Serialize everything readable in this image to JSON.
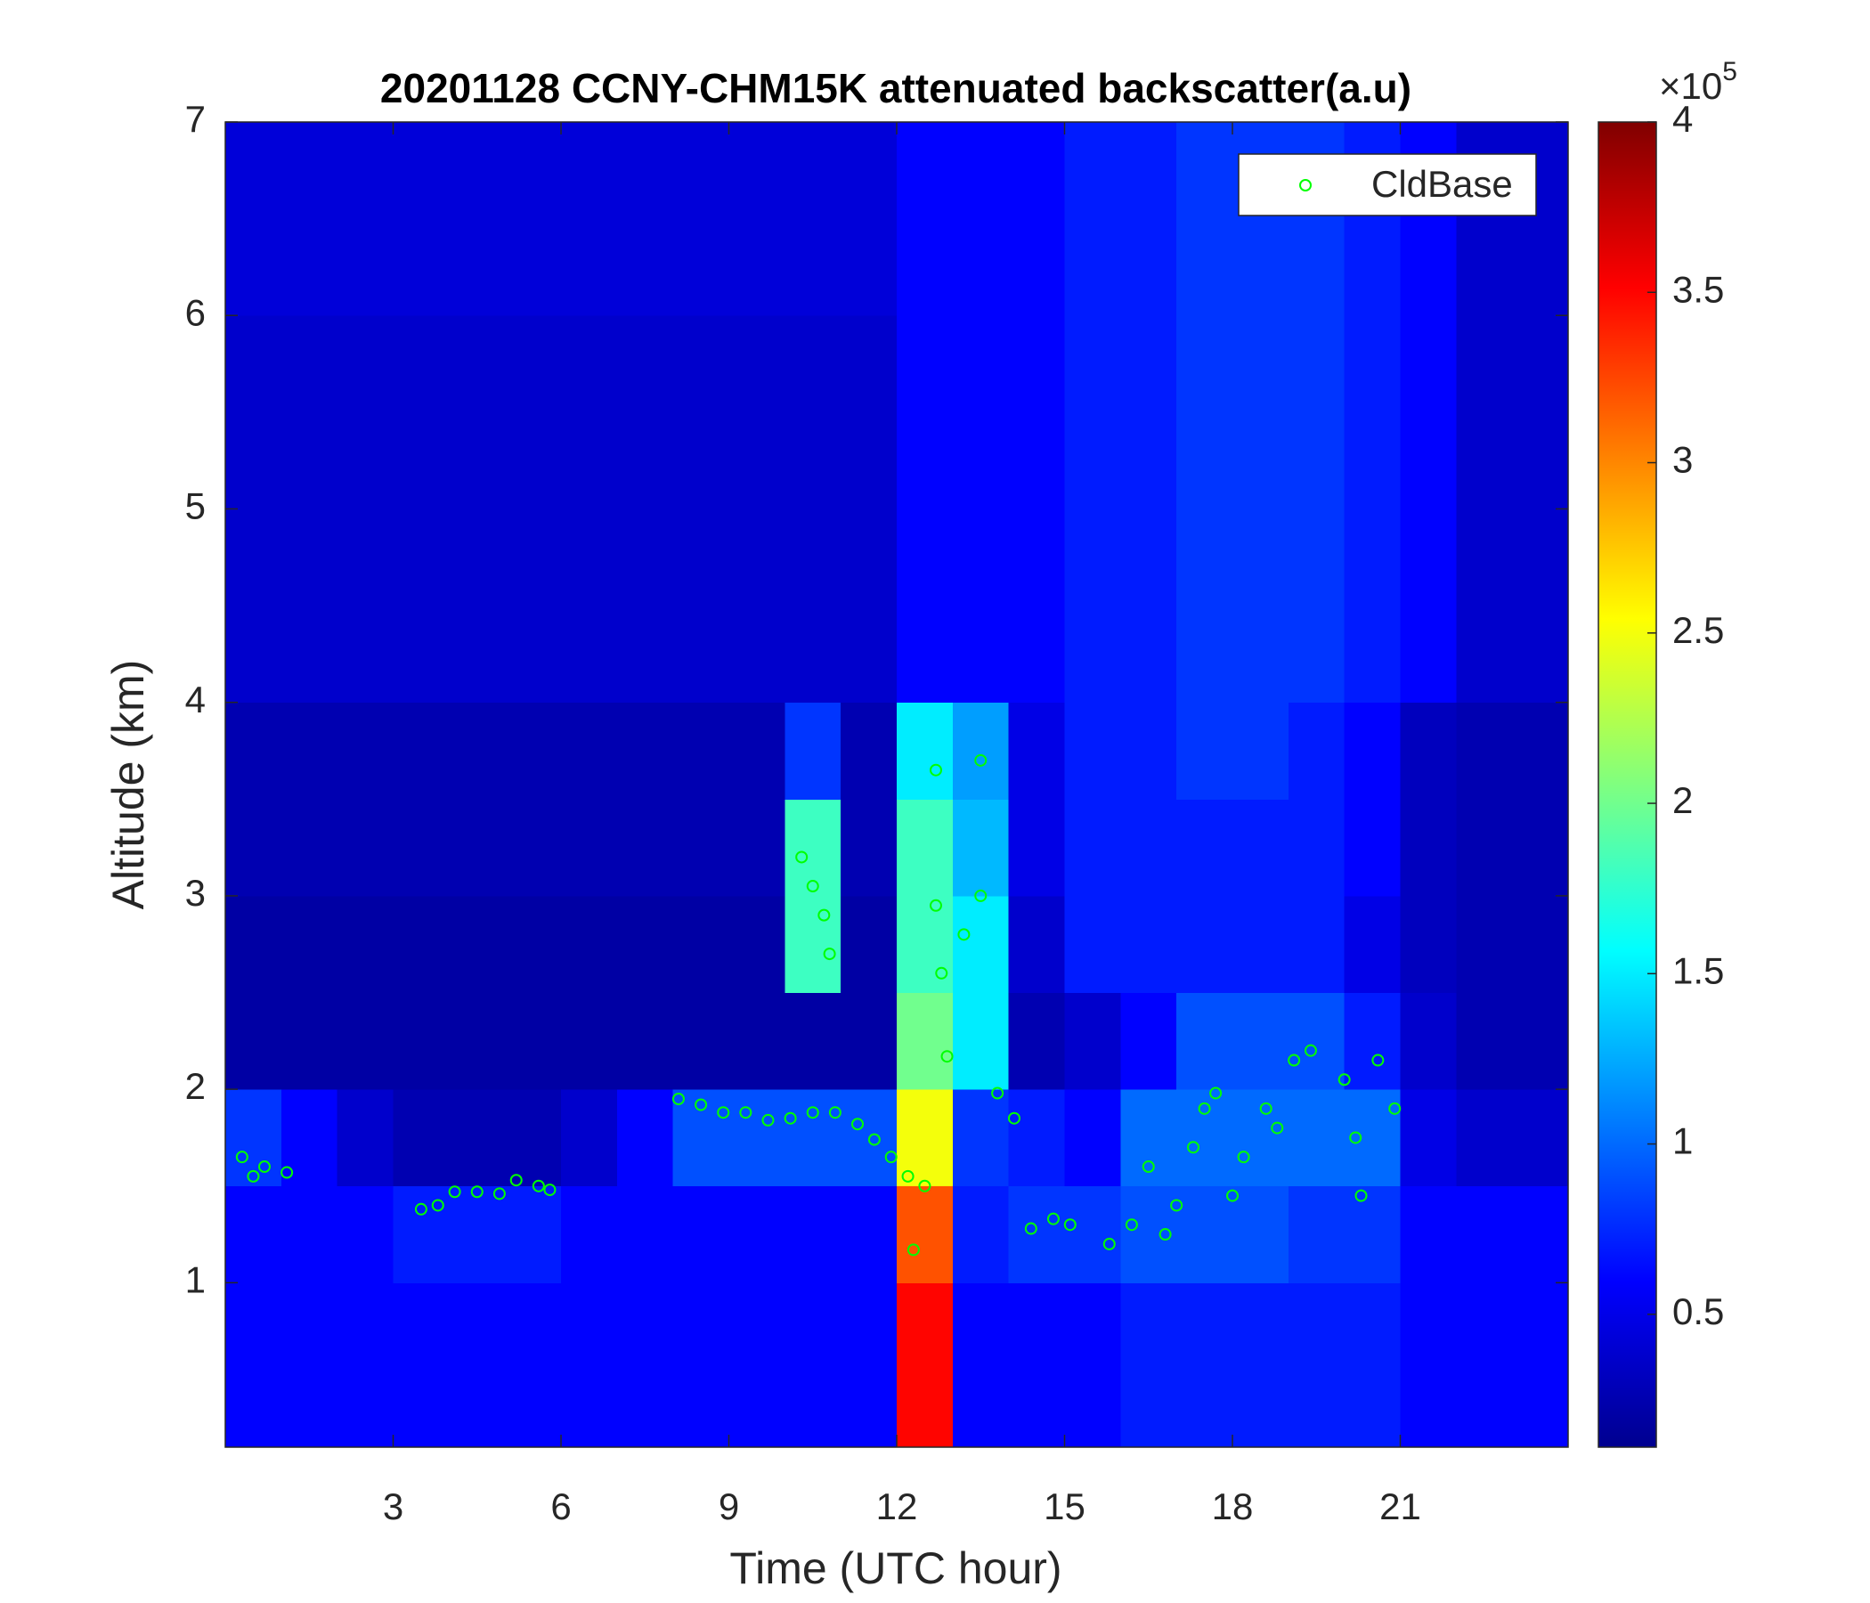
{
  "chart_data": {
    "type": "heatmap",
    "title": "20201128 CCNY-CHM15K attenuated backscatter(a.u)",
    "xlabel": "Time (UTC hour)",
    "ylabel": "Altitude (km)",
    "xlim": [
      0,
      24
    ],
    "ylim": [
      0.15,
      7
    ],
    "xticks": [
      3,
      6,
      9,
      12,
      15,
      18,
      21
    ],
    "yticks": [
      1,
      2,
      3,
      4,
      5,
      6,
      7
    ],
    "x_edges": [
      0,
      1,
      2,
      3,
      4,
      5,
      6,
      7,
      8,
      9,
      10,
      11,
      12,
      13,
      14,
      15,
      16,
      17,
      18,
      19,
      20,
      21,
      22,
      23,
      24
    ],
    "y_edges": [
      0.15,
      0.5,
      1,
      1.5,
      2,
      2.5,
      3,
      3.5,
      4,
      4.5,
      5,
      5.5,
      6,
      6.5,
      7
    ],
    "z": [
      [
        0.6,
        0.6,
        0.6,
        0.6,
        0.6,
        0.6,
        0.6,
        0.6,
        0.6,
        0.6,
        0.6,
        0.6,
        3.5,
        0.6,
        0.6,
        0.6,
        0.7,
        0.7,
        0.7,
        0.7,
        0.7,
        0.6,
        0.6,
        0.6
      ],
      [
        0.6,
        0.6,
        0.6,
        0.6,
        0.6,
        0.6,
        0.6,
        0.6,
        0.6,
        0.6,
        0.6,
        0.6,
        3.5,
        0.6,
        0.6,
        0.6,
        0.7,
        0.7,
        0.7,
        0.7,
        0.7,
        0.6,
        0.6,
        0.6
      ],
      [
        0.6,
        0.6,
        0.6,
        0.7,
        0.7,
        0.7,
        0.6,
        0.6,
        0.6,
        0.6,
        0.6,
        0.6,
        3.2,
        0.7,
        0.8,
        0.8,
        0.9,
        0.9,
        0.9,
        0.8,
        0.8,
        0.6,
        0.6,
        0.6
      ],
      [
        0.8,
        0.6,
        0.4,
        0.3,
        0.3,
        0.3,
        0.4,
        0.6,
        0.9,
        0.9,
        0.9,
        0.9,
        2.5,
        0.8,
        0.7,
        0.6,
        1.0,
        1.0,
        1.0,
        1.0,
        1.0,
        0.5,
        0.4,
        0.4
      ],
      [
        0.25,
        0.25,
        0.25,
        0.25,
        0.25,
        0.25,
        0.25,
        0.25,
        0.25,
        0.25,
        0.25,
        0.25,
        2.0,
        1.5,
        0.3,
        0.4,
        0.6,
        0.9,
        0.9,
        0.9,
        0.7,
        0.4,
        0.3,
        0.3
      ],
      [
        0.25,
        0.25,
        0.25,
        0.25,
        0.25,
        0.25,
        0.25,
        0.25,
        0.25,
        0.25,
        1.8,
        0.25,
        1.8,
        1.5,
        0.4,
        0.7,
        0.7,
        0.7,
        0.7,
        0.7,
        0.5,
        0.35,
        0.3,
        0.3
      ],
      [
        0.3,
        0.3,
        0.3,
        0.3,
        0.3,
        0.3,
        0.3,
        0.3,
        0.3,
        0.3,
        1.8,
        0.3,
        1.8,
        1.3,
        0.5,
        0.7,
        0.7,
        0.7,
        0.7,
        0.7,
        0.6,
        0.35,
        0.3,
        0.3
      ],
      [
        0.3,
        0.3,
        0.3,
        0.3,
        0.3,
        0.3,
        0.3,
        0.3,
        0.3,
        0.3,
        0.8,
        0.3,
        1.5,
        1.2,
        0.5,
        0.7,
        0.7,
        0.8,
        0.8,
        0.7,
        0.6,
        0.35,
        0.3,
        0.3
      ],
      [
        0.4,
        0.4,
        0.4,
        0.4,
        0.4,
        0.4,
        0.4,
        0.4,
        0.4,
        0.4,
        0.4,
        0.4,
        0.6,
        0.6,
        0.6,
        0.7,
        0.7,
        0.8,
        0.8,
        0.8,
        0.7,
        0.6,
        0.4,
        0.4
      ],
      [
        0.4,
        0.4,
        0.4,
        0.4,
        0.4,
        0.4,
        0.4,
        0.4,
        0.4,
        0.4,
        0.4,
        0.4,
        0.6,
        0.6,
        0.6,
        0.7,
        0.7,
        0.8,
        0.8,
        0.8,
        0.7,
        0.6,
        0.4,
        0.4
      ],
      [
        0.4,
        0.4,
        0.4,
        0.4,
        0.4,
        0.4,
        0.4,
        0.4,
        0.4,
        0.4,
        0.4,
        0.4,
        0.6,
        0.6,
        0.6,
        0.7,
        0.7,
        0.8,
        0.8,
        0.8,
        0.7,
        0.6,
        0.4,
        0.4
      ],
      [
        0.4,
        0.4,
        0.4,
        0.4,
        0.4,
        0.4,
        0.4,
        0.4,
        0.4,
        0.4,
        0.4,
        0.4,
        0.6,
        0.6,
        0.6,
        0.7,
        0.7,
        0.8,
        0.8,
        0.8,
        0.7,
        0.6,
        0.4,
        0.4
      ],
      [
        0.45,
        0.45,
        0.45,
        0.45,
        0.45,
        0.45,
        0.45,
        0.45,
        0.45,
        0.45,
        0.45,
        0.45,
        0.6,
        0.6,
        0.6,
        0.7,
        0.7,
        0.8,
        0.8,
        0.8,
        0.7,
        0.6,
        0.4,
        0.4
      ],
      [
        0.45,
        0.45,
        0.45,
        0.45,
        0.45,
        0.45,
        0.45,
        0.45,
        0.45,
        0.45,
        0.45,
        0.45,
        0.6,
        0.6,
        0.6,
        0.7,
        0.7,
        0.8,
        0.8,
        0.8,
        0.7,
        0.6,
        0.4,
        0.4
      ]
    ],
    "colormap": "jet",
    "clim": [
      0.11,
      4
    ],
    "cticks": [
      0.5,
      1,
      1.5,
      2,
      2.5,
      3,
      3.5,
      4
    ],
    "cmultiplier": "×10",
    "cexponent": 5,
    "legend": "upper right",
    "series": [
      {
        "name": "CldBase",
        "type": "scatter",
        "color": "#00ff00",
        "x": [
          0.3,
          0.5,
          0.7,
          1.1,
          3.5,
          3.8,
          4.1,
          4.5,
          4.9,
          5.2,
          5.6,
          5.8,
          8.1,
          8.5,
          8.9,
          9.3,
          9.7,
          10.1,
          10.5,
          10.9,
          11.3,
          11.6,
          11.9,
          12.2,
          12.3,
          12.5,
          10.3,
          10.5,
          10.7,
          10.8,
          12.7,
          12.7,
          12.8,
          12.9,
          13.2,
          13.5,
          13.5,
          13.8,
          14.1,
          14.4,
          14.8,
          15.1,
          15.8,
          16.2,
          16.5,
          16.8,
          17.0,
          17.3,
          17.5,
          17.7,
          18.0,
          18.2,
          18.6,
          18.8,
          19.1,
          19.4,
          20.0,
          20.2,
          20.3,
          20.6,
          20.9
        ],
        "y": [
          1.65,
          1.55,
          1.6,
          1.57,
          1.38,
          1.4,
          1.47,
          1.47,
          1.46,
          1.53,
          1.5,
          1.48,
          1.95,
          1.92,
          1.88,
          1.88,
          1.84,
          1.85,
          1.88,
          1.88,
          1.82,
          1.74,
          1.65,
          1.55,
          1.17,
          1.5,
          3.2,
          3.05,
          2.9,
          2.7,
          3.65,
          2.95,
          2.6,
          2.17,
          2.8,
          3.0,
          3.7,
          1.98,
          1.85,
          1.28,
          1.33,
          1.3,
          1.2,
          1.3,
          1.6,
          1.25,
          1.4,
          1.7,
          1.9,
          1.98,
          1.45,
          1.65,
          1.9,
          1.8,
          2.15,
          2.2,
          2.05,
          1.75,
          1.45,
          2.15,
          1.9
        ]
      }
    ]
  }
}
